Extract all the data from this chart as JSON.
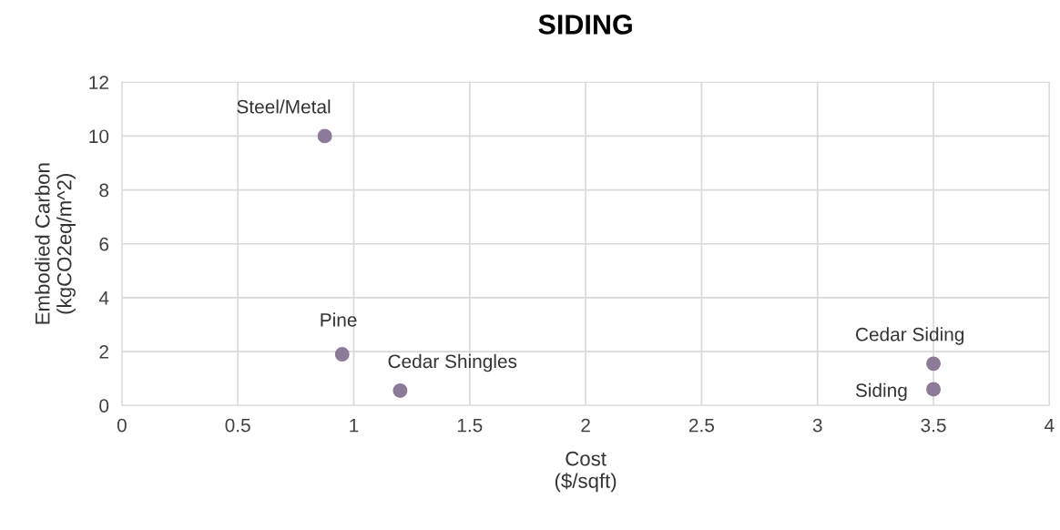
{
  "chart_data": {
    "type": "scatter",
    "title": "SIDING",
    "xlabel": "Cost\n($/sqft)",
    "ylabel": "Embodied Carbon\n(kgCO2eq/m^2)",
    "x": [
      0.875,
      0.95,
      1.2,
      3.5,
      3.5
    ],
    "series": [
      {
        "color": "#8c7a99",
        "values": [
          10,
          1.9,
          0.55,
          1.55,
          0.6
        ]
      }
    ],
    "annotations": [
      {
        "text": "Steel/Metal",
        "x": 0.875,
        "y": 10
      },
      {
        "text": "Pine",
        "x": 0.95,
        "y": 1.9
      },
      {
        "text": "Cedar Shingles",
        "x": 1.2,
        "y": 0.55
      },
      {
        "text": "Cedar Siding",
        "x": 3.5,
        "y": 1.55
      },
      {
        "text": "Siding",
        "x": 3.5,
        "y": 0.6
      }
    ],
    "xlim": [
      0,
      4
    ],
    "xticks": [
      0,
      0.5,
      1,
      1.5,
      2,
      2.5,
      3,
      3.5,
      4
    ],
    "ylim": [
      0,
      12
    ],
    "yticks": [
      0,
      2,
      4,
      6,
      8,
      10,
      12
    ],
    "grid": true,
    "marker": "circle",
    "legend": false
  }
}
